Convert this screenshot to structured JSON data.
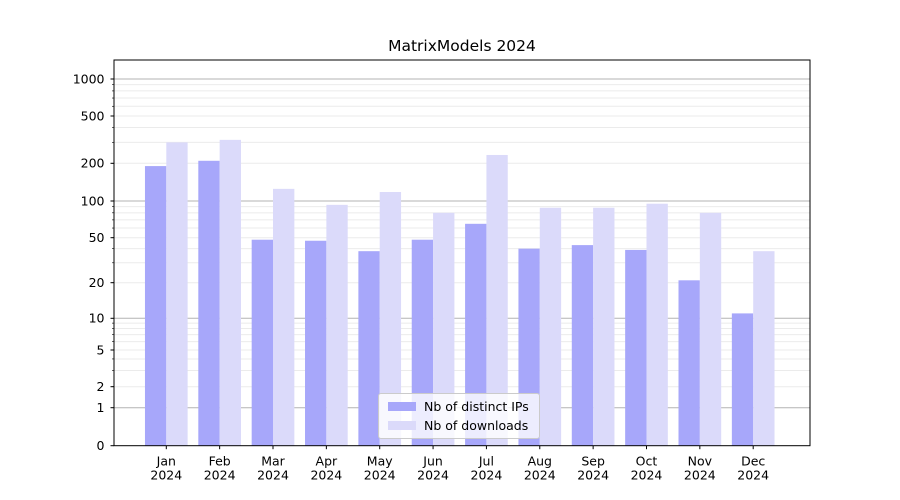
{
  "title": "MatrixModels 2024",
  "chart_data": {
    "type": "bar",
    "title": "MatrixModels 2024",
    "xlabel": "",
    "ylabel": "",
    "yscale": "symlog",
    "ylim": [
      0,
      1430
    ],
    "yticks": [
      0,
      1,
      2,
      5,
      10,
      20,
      50,
      100,
      200,
      500,
      1000
    ],
    "grid": {
      "horizontal_major": true,
      "horizontal_minor": true,
      "vertical": false
    },
    "legend": {
      "position": "lower-center-inside",
      "entries": [
        "Nb of distinct IPs",
        "Nb of downloads"
      ]
    },
    "categories": [
      "Jan 2024",
      "Feb 2024",
      "Mar 2024",
      "Apr 2024",
      "May 2024",
      "Jun 2024",
      "Jul 2024",
      "Aug 2024",
      "Sep 2024",
      "Oct 2024",
      "Nov 2024",
      "Dec 2024"
    ],
    "series": [
      {
        "name": "Nb of distinct IPs",
        "color": "#a7a7fa",
        "values": [
          190,
          210,
          48,
          47,
          38,
          48,
          65,
          40,
          43,
          39,
          21,
          11
        ]
      },
      {
        "name": "Nb of downloads",
        "color": "#dbdafa",
        "values": [
          300,
          315,
          125,
          93,
          118,
          80,
          235,
          88,
          88,
          95,
          80,
          38
        ]
      }
    ],
    "colors": {
      "major_grid": "#b3b3b3",
      "minor_grid": "#ebebeb",
      "axis": "#000000",
      "text": "#000000",
      "background": "#ffffff"
    }
  }
}
